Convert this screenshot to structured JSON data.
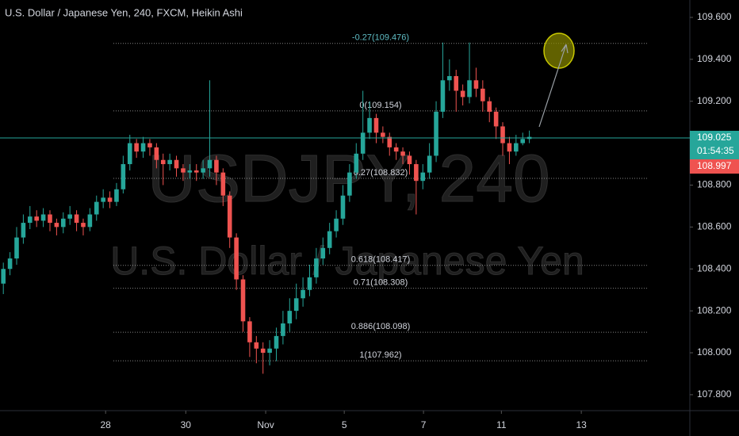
{
  "chart_data": {
    "type": "candlestick",
    "title": "U.S. Dollar / Japanese Yen, 240, FXCM, Heikin Ashi",
    "watermark": "USDJPY, 240",
    "watermark_subtitle": "U.S. Dollar / Japanese Yen",
    "up_color": "#26a69a",
    "down_color": "#ef5350",
    "ylim": [
      107.724,
      109.683
    ],
    "yticks": [
      {
        "value": 107.8,
        "label": "107.800"
      },
      {
        "value": 108.0,
        "label": "108.000"
      },
      {
        "value": 108.2,
        "label": "108.200"
      },
      {
        "value": 108.4,
        "label": "108.400"
      },
      {
        "value": 108.6,
        "label": "108.600"
      },
      {
        "value": 108.8,
        "label": "108.800"
      },
      {
        "value": 109.0,
        "label": "109.000"
      },
      {
        "value": 109.2,
        "label": "109.200"
      },
      {
        "value": 109.4,
        "label": "109.400"
      },
      {
        "value": 109.6,
        "label": "109.600"
      }
    ],
    "xlim": [
      -0.5,
      103.1
    ],
    "xticks": [
      {
        "value": 15.36,
        "label": "28"
      },
      {
        "value": 27.4,
        "label": "30"
      },
      {
        "value": 39.4,
        "label": "Nov"
      },
      {
        "value": 51.2,
        "label": "5"
      },
      {
        "value": 63.1,
        "label": "7"
      },
      {
        "value": 74.8,
        "label": "11"
      },
      {
        "value": 86.8,
        "label": "13"
      }
    ],
    "candles": {
      "open": [
        108.33,
        108.4,
        108.45,
        108.55,
        108.62,
        108.65,
        108.63,
        108.66,
        108.62,
        108.6,
        108.64,
        108.66,
        108.62,
        108.6,
        108.66,
        108.72,
        108.74,
        108.72,
        108.78,
        108.9,
        109.0,
        108.96,
        109.0,
        108.98,
        108.92,
        108.9,
        108.92,
        108.88,
        108.86,
        108.87,
        108.86,
        108.88,
        108.92,
        108.86,
        108.75,
        108.55,
        108.35,
        108.15,
        108.05,
        108.02,
        108.0,
        108.02,
        108.08,
        108.14,
        108.2,
        108.26,
        108.3,
        108.36,
        108.45,
        108.5,
        108.58,
        108.64,
        108.75,
        108.86,
        108.95,
        109.05,
        109.12,
        109.05,
        109.03,
        108.98,
        108.96,
        108.94,
        108.9,
        108.82,
        108.86,
        108.94,
        109.15,
        109.3,
        109.32,
        109.25,
        109.22,
        109.3,
        109.26,
        109.2,
        109.15,
        109.08,
        109.0,
        108.96,
        109.0,
        109.02
      ],
      "high": [
        108.43,
        108.48,
        108.6,
        108.66,
        108.7,
        108.68,
        108.69,
        108.68,
        108.64,
        108.67,
        108.7,
        108.68,
        108.64,
        108.69,
        108.75,
        108.78,
        108.77,
        108.81,
        108.94,
        109.04,
        109.02,
        109.03,
        109.02,
        109.0,
        108.95,
        108.95,
        108.94,
        108.9,
        108.9,
        108.9,
        108.92,
        109.3,
        108.94,
        108.88,
        108.77,
        108.57,
        108.37,
        108.17,
        108.08,
        108.05,
        108.06,
        108.12,
        108.2,
        108.26,
        108.33,
        108.36,
        108.42,
        108.5,
        108.55,
        108.62,
        108.68,
        108.8,
        108.9,
        109.0,
        109.25,
        109.2,
        109.14,
        109.08,
        109.05,
        109.0,
        108.98,
        108.96,
        108.92,
        108.9,
        109.0,
        109.2,
        109.48,
        109.4,
        109.35,
        109.28,
        109.48,
        109.36,
        109.3,
        109.22,
        109.17,
        109.1,
        109.03,
        109.04,
        109.05,
        109.06
      ],
      "low": [
        108.28,
        108.37,
        108.42,
        108.52,
        108.59,
        108.6,
        108.6,
        108.58,
        108.56,
        108.57,
        108.61,
        108.58,
        108.56,
        108.58,
        108.63,
        108.69,
        108.69,
        108.7,
        108.76,
        108.87,
        108.93,
        108.93,
        108.94,
        108.88,
        108.8,
        108.87,
        108.84,
        108.82,
        108.83,
        108.82,
        108.83,
        108.84,
        108.8,
        108.7,
        108.5,
        108.3,
        108.1,
        107.98,
        107.95,
        107.9,
        107.94,
        107.96,
        108.04,
        108.1,
        108.16,
        108.22,
        108.27,
        108.33,
        108.42,
        108.47,
        108.55,
        108.61,
        108.72,
        108.83,
        108.92,
        109.02,
        109.0,
        109.0,
        108.94,
        108.92,
        108.9,
        108.85,
        108.66,
        108.78,
        108.83,
        108.91,
        109.12,
        109.25,
        109.15,
        109.18,
        109.19,
        109.22,
        109.15,
        109.1,
        109.02,
        108.94,
        108.9,
        108.94,
        108.99,
        109.0
      ],
      "close": [
        108.4,
        108.45,
        108.55,
        108.62,
        108.65,
        108.63,
        108.66,
        108.62,
        108.6,
        108.64,
        108.66,
        108.62,
        108.6,
        108.66,
        108.72,
        108.74,
        108.72,
        108.78,
        108.9,
        109.0,
        108.96,
        109.0,
        108.98,
        108.92,
        108.9,
        108.92,
        108.88,
        108.86,
        108.87,
        108.86,
        108.88,
        108.92,
        108.86,
        108.75,
        108.55,
        108.35,
        108.15,
        108.05,
        108.02,
        108.0,
        108.02,
        108.08,
        108.14,
        108.2,
        108.26,
        108.3,
        108.36,
        108.45,
        108.5,
        108.58,
        108.64,
        108.75,
        108.86,
        108.95,
        109.05,
        109.12,
        109.05,
        109.03,
        108.98,
        108.96,
        108.94,
        108.9,
        108.82,
        108.86,
        108.94,
        109.15,
        109.3,
        109.32,
        109.25,
        109.22,
        109.3,
        109.26,
        109.2,
        109.15,
        109.08,
        109.0,
        108.96,
        109.0,
        109.02,
        109.03
      ]
    },
    "fib_levels": [
      {
        "label": "-0.27(109.476)",
        "price": 109.476
      },
      {
        "label": "0(109.154)",
        "price": 109.154
      },
      {
        "label": "0.27(108.832)",
        "price": 108.832
      },
      {
        "label": "0.618(108.417)",
        "price": 108.417
      },
      {
        "label": "0.71(108.308)",
        "price": 108.308
      },
      {
        "label": "0.886(108.098)",
        "price": 108.098
      },
      {
        "label": "1(107.962)",
        "price": 107.962
      }
    ],
    "fib_color": "#5fbcc4",
    "last_price": 109.025,
    "countdown": "01:54:35",
    "bid_price": 108.997
  }
}
